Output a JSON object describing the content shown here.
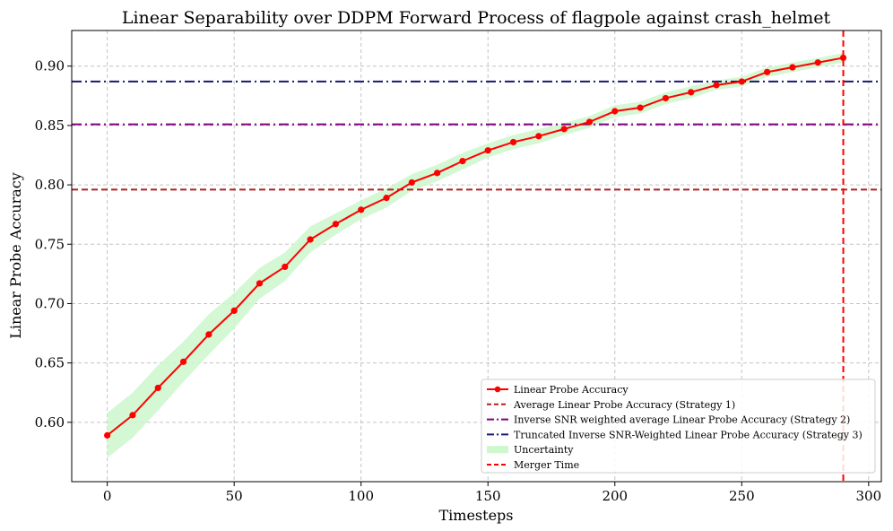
{
  "chart_data": {
    "type": "line",
    "title": "Linear Separability over DDPM Forward Process of flagpole against crash_helmet",
    "xlabel": "Timesteps",
    "ylabel": "Linear Probe Accuracy",
    "xlim": [
      -14,
      305
    ],
    "ylim": [
      0.55,
      0.93
    ],
    "xticks": [
      0,
      50,
      100,
      150,
      200,
      250,
      300
    ],
    "xtick_labels": [
      "0",
      "50",
      "100",
      "150",
      "200",
      "250",
      "300"
    ],
    "yticks": [
      0.6,
      0.65,
      0.7,
      0.75,
      0.8,
      0.85,
      0.9
    ],
    "ytick_labels": [
      "0.60",
      "0.65",
      "0.70",
      "0.75",
      "0.80",
      "0.85",
      "0.90"
    ],
    "grid": true,
    "series": [
      {
        "name": "Linear Probe Accuracy",
        "color": "#ff0000",
        "x": [
          0,
          10,
          20,
          30,
          40,
          50,
          60,
          70,
          80,
          90,
          100,
          110,
          120,
          130,
          140,
          150,
          160,
          170,
          180,
          190,
          200,
          210,
          220,
          230,
          240,
          250,
          260,
          270,
          280,
          290
        ],
        "y": [
          0.589,
          0.606,
          0.629,
          0.651,
          0.674,
          0.694,
          0.717,
          0.731,
          0.754,
          0.767,
          0.779,
          0.789,
          0.802,
          0.81,
          0.82,
          0.829,
          0.836,
          0.841,
          0.847,
          0.853,
          0.862,
          0.865,
          0.873,
          0.878,
          0.884,
          0.887,
          0.895,
          0.899,
          0.903,
          0.907
        ]
      }
    ],
    "uncertainty": {
      "name": "Uncertainty",
      "color": "#cdf7cd",
      "half_width": [
        0.019,
        0.019,
        0.019,
        0.017,
        0.017,
        0.015,
        0.013,
        0.012,
        0.011,
        0.009,
        0.008,
        0.008,
        0.007,
        0.007,
        0.007,
        0.006,
        0.006,
        0.006,
        0.005,
        0.005,
        0.005,
        0.005,
        0.005,
        0.005,
        0.004,
        0.004,
        0.004,
        0.004,
        0.004,
        0.004
      ]
    },
    "hlines": [
      {
        "name": "Average Linear Probe Accuracy (Strategy 1)",
        "value": 0.796,
        "color": "#b22222",
        "style": "dashed"
      },
      {
        "name": "Inverse SNR weighted average Linear Probe Accuracy (Strategy 2)",
        "value": 0.851,
        "color": "#800080",
        "style": "dashdot"
      },
      {
        "name": "Truncated Inverse SNR-Weighted Linear Probe Accuracy (Strategy 3)",
        "value": 0.887,
        "color": "#191970",
        "style": "dashdot"
      }
    ],
    "vlines": [
      {
        "name": "Merger Time",
        "value": 290,
        "color": "#ff0000",
        "style": "dashed"
      }
    ],
    "legend": {
      "position": "bottom-right",
      "entries": [
        {
          "label": "Linear Probe Accuracy",
          "kind": "line-marker",
          "color": "#ff0000"
        },
        {
          "label": "Average Linear Probe Accuracy (Strategy 1)",
          "kind": "dashed",
          "color": "#b22222"
        },
        {
          "label": "Inverse SNR weighted average Linear Probe Accuracy (Strategy 2)",
          "kind": "dashdot",
          "color": "#800080"
        },
        {
          "label": "Truncated Inverse SNR-Weighted Linear Probe Accuracy (Strategy 3)",
          "kind": "dashdot",
          "color": "#191970"
        },
        {
          "label": "Uncertainty",
          "kind": "patch",
          "color": "#cdf7cd"
        },
        {
          "label": "Merger Time",
          "kind": "dashed",
          "color": "#ff0000"
        }
      ]
    }
  }
}
